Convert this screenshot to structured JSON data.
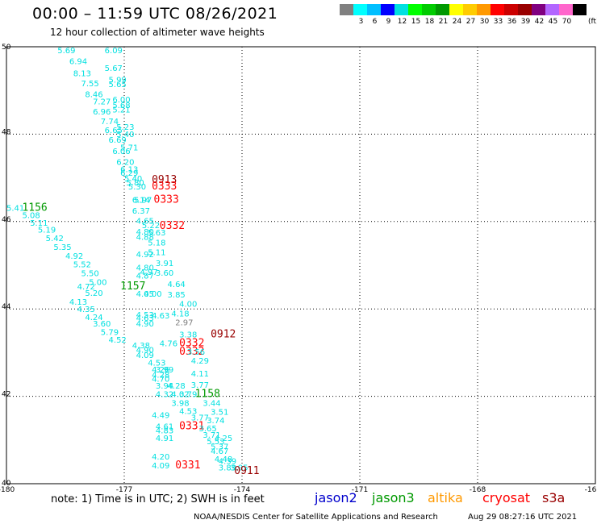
{
  "title": "00:00 – 11:59 UTC 08/26/2021",
  "subtitle": "12 hour collection of altimeter wave heights",
  "color_scale": {
    "unit": "(ft)",
    "colors": [
      "#808080",
      "#00ffff",
      "#00bfff",
      "#0000ff",
      "#00e0e0",
      "#00ff00",
      "#00cc00",
      "#009900",
      "#ffff00",
      "#ffcc00",
      "#ff9900",
      "#ff0000",
      "#cc0000",
      "#990000",
      "#800080",
      "#b266ff",
      "#ff66cc",
      "#000000"
    ],
    "labels": [
      "3",
      "6",
      "9",
      "12",
      "15",
      "18",
      "21",
      "24",
      "27",
      "30",
      "33",
      "36",
      "39",
      "42",
      "45",
      "70"
    ]
  },
  "map": {
    "lon_range": [
      -180,
      -165
    ],
    "lat_range": [
      40,
      50
    ],
    "lon_ticks": [
      {
        "value": -180,
        "label": "-180"
      },
      {
        "value": -177,
        "label": "-177"
      },
      {
        "value": -174,
        "label": "-174"
      },
      {
        "value": -171,
        "label": "-171"
      },
      {
        "value": -168,
        "label": "-168"
      },
      {
        "value": -165,
        "label": "-16"
      }
    ],
    "lat_ticks": [
      {
        "value": 50,
        "label": "50"
      },
      {
        "value": 48,
        "label": "48"
      },
      {
        "value": 46,
        "label": "46"
      },
      {
        "value": 44,
        "label": "44"
      },
      {
        "value": 42,
        "label": "42"
      },
      {
        "value": 40,
        "label": "40"
      }
    ],
    "grid": true
  },
  "chart_data": {
    "type": "scatter",
    "x_label": "",
    "y_label": "",
    "xlim": [
      -180,
      -165
    ],
    "ylim": [
      40,
      50
    ],
    "points": [
      {
        "lon": -178.7,
        "lat": 49.85,
        "label": "5.69",
        "color": "#00e0e0"
      },
      {
        "lon": -177.5,
        "lat": 49.85,
        "label": "6.09",
        "color": "#00e0e0"
      },
      {
        "lon": -178.4,
        "lat": 49.6,
        "label": "6.94",
        "color": "#00e0e0"
      },
      {
        "lon": -177.5,
        "lat": 49.45,
        "label": "5.67",
        "color": "#00e0e0"
      },
      {
        "lon": -178.3,
        "lat": 49.33,
        "label": "8.13",
        "color": "#00e0e0"
      },
      {
        "lon": -177.4,
        "lat": 49.18,
        "label": "5.99",
        "color": "#00e0e0"
      },
      {
        "lon": -178.1,
        "lat": 49.1,
        "label": "7.55",
        "color": "#00e0e0"
      },
      {
        "lon": -177.4,
        "lat": 49.08,
        "label": "5.65",
        "color": "#00e0e0"
      },
      {
        "lon": -178.0,
        "lat": 48.85,
        "label": "8.46",
        "color": "#00e0e0"
      },
      {
        "lon": -177.3,
        "lat": 48.73,
        "label": "6.00",
        "color": "#00e0e0"
      },
      {
        "lon": -177.8,
        "lat": 48.68,
        "label": "7.27",
        "color": "#00e0e0"
      },
      {
        "lon": -177.3,
        "lat": 48.6,
        "label": "5.68",
        "color": "#00e0e0"
      },
      {
        "lon": -177.3,
        "lat": 48.5,
        "label": "5.21",
        "color": "#00e0e0"
      },
      {
        "lon": -177.8,
        "lat": 48.45,
        "label": "6.96",
        "color": "#00e0e0"
      },
      {
        "lon": -177.6,
        "lat": 48.23,
        "label": "7.74",
        "color": "#00e0e0"
      },
      {
        "lon": -177.2,
        "lat": 48.1,
        "label": "5.23",
        "color": "#00e0e0"
      },
      {
        "lon": -177.5,
        "lat": 48.03,
        "label": "6.65",
        "color": "#00e0e0"
      },
      {
        "lon": -177.2,
        "lat": 47.93,
        "label": "5.40",
        "color": "#00e0e0"
      },
      {
        "lon": -177.4,
        "lat": 47.8,
        "label": "6.69",
        "color": "#00e0e0"
      },
      {
        "lon": -177.1,
        "lat": 47.63,
        "label": "5.71",
        "color": "#00e0e0"
      },
      {
        "lon": -177.3,
        "lat": 47.55,
        "label": "6.06",
        "color": "#00e0e0"
      },
      {
        "lon": -177.2,
        "lat": 47.3,
        "label": "6.20",
        "color": "#00e0e0"
      },
      {
        "lon": -177.1,
        "lat": 47.13,
        "label": "6.13",
        "color": "#00e0e0"
      },
      {
        "lon": -177.1,
        "lat": 47.05,
        "label": "6.29",
        "color": "#00e0e0"
      },
      {
        "lon": -177.0,
        "lat": 46.92,
        "label": "5.40",
        "color": "#00e0e0"
      },
      {
        "lon": -176.95,
        "lat": 46.83,
        "label": "5.80",
        "color": "#00e0e0"
      },
      {
        "lon": -176.9,
        "lat": 46.73,
        "label": "5.30",
        "color": "#00e0e0"
      },
      {
        "lon": -176.3,
        "lat": 46.88,
        "label": "0913",
        "color": "#990000"
      },
      {
        "lon": -176.3,
        "lat": 46.73,
        "label": "0333",
        "color": "#ff0000"
      },
      {
        "lon": -176.25,
        "lat": 46.43,
        "label": "0333",
        "color": "#ff0000"
      },
      {
        "lon": -176.8,
        "lat": 46.43,
        "label": "6.14",
        "color": "#00e0e0"
      },
      {
        "lon": -176.75,
        "lat": 46.43,
        "label": "5.97",
        "color": "#00e0e0"
      },
      {
        "lon": -176.8,
        "lat": 46.18,
        "label": "6.37",
        "color": "#00e0e0"
      },
      {
        "lon": -179.6,
        "lat": 46.25,
        "label": "1156",
        "color": "#009900"
      },
      {
        "lon": -180.0,
        "lat": 46.25,
        "label": "5.41",
        "color": "#00e0e0"
      },
      {
        "lon": -179.6,
        "lat": 46.08,
        "label": "5.08",
        "color": "#00e0e0"
      },
      {
        "lon": -179.4,
        "lat": 45.9,
        "label": "5.11",
        "color": "#00e0e0"
      },
      {
        "lon": -176.7,
        "lat": 45.95,
        "label": "4.65",
        "color": "#00e0e0"
      },
      {
        "lon": -176.55,
        "lat": 45.85,
        "label": "5.22",
        "color": "#00e0e0"
      },
      {
        "lon": -176.1,
        "lat": 45.83,
        "label": "0332",
        "color": "#ff0000"
      },
      {
        "lon": -179.2,
        "lat": 45.75,
        "label": "5.19",
        "color": "#00e0e0"
      },
      {
        "lon": -176.7,
        "lat": 45.7,
        "label": "4.80",
        "color": "#00e0e0"
      },
      {
        "lon": -176.4,
        "lat": 45.68,
        "label": "5.63",
        "color": "#00e0e0"
      },
      {
        "lon": -176.7,
        "lat": 45.58,
        "label": "4.88",
        "color": "#00e0e0"
      },
      {
        "lon": -179.0,
        "lat": 45.55,
        "label": "5.42",
        "color": "#00e0e0"
      },
      {
        "lon": -176.4,
        "lat": 45.45,
        "label": "5.18",
        "color": "#00e0e0"
      },
      {
        "lon": -178.8,
        "lat": 45.35,
        "label": "5.35",
        "color": "#00e0e0"
      },
      {
        "lon": -176.4,
        "lat": 45.23,
        "label": "5.11",
        "color": "#00e0e0"
      },
      {
        "lon": -176.7,
        "lat": 45.18,
        "label": "4.92",
        "color": "#00e0e0"
      },
      {
        "lon": -178.5,
        "lat": 45.15,
        "label": "4.92",
        "color": "#00e0e0"
      },
      {
        "lon": -178.3,
        "lat": 44.95,
        "label": "5.52",
        "color": "#00e0e0"
      },
      {
        "lon": -176.2,
        "lat": 44.98,
        "label": "3.91",
        "color": "#00e0e0"
      },
      {
        "lon": -176.7,
        "lat": 44.88,
        "label": "4.80",
        "color": "#00e0e0"
      },
      {
        "lon": -176.6,
        "lat": 44.78,
        "label": "4.97",
        "color": "#00e0e0"
      },
      {
        "lon": -176.2,
        "lat": 44.76,
        "label": "3.60",
        "color": "#00e0e0"
      },
      {
        "lon": -178.1,
        "lat": 44.75,
        "label": "5.50",
        "color": "#00e0e0"
      },
      {
        "lon": -176.7,
        "lat": 44.7,
        "label": "4.87",
        "color": "#00e0e0"
      },
      {
        "lon": -177.9,
        "lat": 44.55,
        "label": "5.00",
        "color": "#00e0e0"
      },
      {
        "lon": -175.9,
        "lat": 44.5,
        "label": "4.64",
        "color": "#00e0e0"
      },
      {
        "lon": -178.2,
        "lat": 44.45,
        "label": "4.72",
        "color": "#00e0e0"
      },
      {
        "lon": -177.1,
        "lat": 44.45,
        "label": "1157",
        "color": "#009900"
      },
      {
        "lon": -176.7,
        "lat": 44.28,
        "label": "4.05",
        "color": "#00e0e0"
      },
      {
        "lon": -176.5,
        "lat": 44.28,
        "label": "4.00",
        "color": "#00e0e0"
      },
      {
        "lon": -175.9,
        "lat": 44.26,
        "label": "3.85",
        "color": "#00e0e0"
      },
      {
        "lon": -178.0,
        "lat": 44.3,
        "label": "5.20",
        "color": "#00e0e0"
      },
      {
        "lon": -178.4,
        "lat": 44.1,
        "label": "4.13",
        "color": "#00e0e0"
      },
      {
        "lon": -175.6,
        "lat": 44.05,
        "label": "4.00",
        "color": "#00e0e0"
      },
      {
        "lon": -178.2,
        "lat": 43.93,
        "label": "4.35",
        "color": "#00e0e0"
      },
      {
        "lon": -175.8,
        "lat": 43.83,
        "label": "4.18",
        "color": "#00e0e0"
      },
      {
        "lon": -176.7,
        "lat": 43.8,
        "label": "4.53",
        "color": "#00e0e0"
      },
      {
        "lon": -176.3,
        "lat": 43.78,
        "label": "4.63",
        "color": "#00e0e0"
      },
      {
        "lon": -178.0,
        "lat": 43.75,
        "label": "4.24",
        "color": "#00e0e0"
      },
      {
        "lon": -176.7,
        "lat": 43.73,
        "label": "4.63",
        "color": "#00e0e0"
      },
      {
        "lon": -175.7,
        "lat": 43.63,
        "label": "2.97",
        "color": "#808080"
      },
      {
        "lon": -177.8,
        "lat": 43.6,
        "label": "3.60",
        "color": "#00e0e0"
      },
      {
        "lon": -176.7,
        "lat": 43.6,
        "label": "4.90",
        "color": "#00e0e0"
      },
      {
        "lon": -177.6,
        "lat": 43.4,
        "label": "5.79",
        "color": "#00e0e0"
      },
      {
        "lon": -175.6,
        "lat": 43.35,
        "label": "3.38",
        "color": "#00e0e0"
      },
      {
        "lon": -174.8,
        "lat": 43.35,
        "label": "0912",
        "color": "#990000"
      },
      {
        "lon": -177.4,
        "lat": 43.23,
        "label": "4.52",
        "color": "#00e0e0"
      },
      {
        "lon": -176.1,
        "lat": 43.15,
        "label": "4.76",
        "color": "#00e0e0"
      },
      {
        "lon": -175.6,
        "lat": 43.15,
        "label": "0332",
        "color": "#ff0000"
      },
      {
        "lon": -176.8,
        "lat": 43.1,
        "label": "4.38",
        "color": "#00e0e0"
      },
      {
        "lon": -176.7,
        "lat": 43.0,
        "label": "4.90",
        "color": "#00e0e0"
      },
      {
        "lon": -175.6,
        "lat": 42.95,
        "label": "0332",
        "color": "#ff0000"
      },
      {
        "lon": -175.4,
        "lat": 42.95,
        "label": "3.56",
        "color": "#00e0e0"
      },
      {
        "lon": -176.7,
        "lat": 42.88,
        "label": "4.09",
        "color": "#00e0e0"
      },
      {
        "lon": -175.3,
        "lat": 42.75,
        "label": "4.29",
        "color": "#00e0e0"
      },
      {
        "lon": -176.4,
        "lat": 42.7,
        "label": "4.53",
        "color": "#00e0e0"
      },
      {
        "lon": -176.3,
        "lat": 42.55,
        "label": "4.26",
        "color": "#00e0e0"
      },
      {
        "lon": -176.2,
        "lat": 42.55,
        "label": "3.99",
        "color": "#00e0e0"
      },
      {
        "lon": -175.3,
        "lat": 42.45,
        "label": "4.11",
        "color": "#00e0e0"
      },
      {
        "lon": -176.3,
        "lat": 42.43,
        "label": "4.28",
        "color": "#00e0e0"
      },
      {
        "lon": -176.3,
        "lat": 42.33,
        "label": "4.70",
        "color": "#00e0e0"
      },
      {
        "lon": -175.3,
        "lat": 42.2,
        "label": "3.77",
        "color": "#00e0e0"
      },
      {
        "lon": -176.2,
        "lat": 42.18,
        "label": "3.94",
        "color": "#00e0e0"
      },
      {
        "lon": -175.9,
        "lat": 42.18,
        "label": "4.28",
        "color": "#00e0e0"
      },
      {
        "lon": -176.2,
        "lat": 41.98,
        "label": "4.32",
        "color": "#00e0e0"
      },
      {
        "lon": -175.8,
        "lat": 41.98,
        "label": "4.02",
        "color": "#00e0e0"
      },
      {
        "lon": -175.6,
        "lat": 41.98,
        "label": "3.79",
        "color": "#00e0e0"
      },
      {
        "lon": -175.2,
        "lat": 41.98,
        "label": "1158",
        "color": "#009900"
      },
      {
        "lon": -175.8,
        "lat": 41.78,
        "label": "3.98",
        "color": "#00e0e0"
      },
      {
        "lon": -175.0,
        "lat": 41.78,
        "label": "3.44",
        "color": "#00e0e0"
      },
      {
        "lon": -175.6,
        "lat": 41.6,
        "label": "4.53",
        "color": "#00e0e0"
      },
      {
        "lon": -174.8,
        "lat": 41.58,
        "label": "3.51",
        "color": "#00e0e0"
      },
      {
        "lon": -176.3,
        "lat": 41.5,
        "label": "4.49",
        "color": "#00e0e0"
      },
      {
        "lon": -175.3,
        "lat": 41.45,
        "label": "3.77",
        "color": "#00e0e0"
      },
      {
        "lon": -174.9,
        "lat": 41.38,
        "label": "3.74",
        "color": "#00e0e0"
      },
      {
        "lon": -176.2,
        "lat": 41.25,
        "label": "4.61",
        "color": "#00e0e0"
      },
      {
        "lon": -175.6,
        "lat": 41.25,
        "label": "0331",
        "color": "#ff0000"
      },
      {
        "lon": -175.1,
        "lat": 41.2,
        "label": "3.65",
        "color": "#00e0e0"
      },
      {
        "lon": -176.2,
        "lat": 41.15,
        "label": "4.83",
        "color": "#00e0e0"
      },
      {
        "lon": -175.0,
        "lat": 41.05,
        "label": "3.71",
        "color": "#00e0e0"
      },
      {
        "lon": -174.7,
        "lat": 40.98,
        "label": "4.25",
        "color": "#00e0e0"
      },
      {
        "lon": -176.2,
        "lat": 40.98,
        "label": "4.91",
        "color": "#00e0e0"
      },
      {
        "lon": -174.9,
        "lat": 40.9,
        "label": "5.53",
        "color": "#00e0e0"
      },
      {
        "lon": -174.8,
        "lat": 40.78,
        "label": "5.37",
        "color": "#00e0e0"
      },
      {
        "lon": -174.8,
        "lat": 40.68,
        "label": "4.67",
        "color": "#00e0e0"
      },
      {
        "lon": -176.3,
        "lat": 40.55,
        "label": "4.20",
        "color": "#00e0e0"
      },
      {
        "lon": -174.7,
        "lat": 40.5,
        "label": "4.48",
        "color": "#00e0e0"
      },
      {
        "lon": -174.6,
        "lat": 40.45,
        "label": "4.39",
        "color": "#00e0e0"
      },
      {
        "lon": -176.3,
        "lat": 40.35,
        "label": "4.09",
        "color": "#00e0e0"
      },
      {
        "lon": -175.7,
        "lat": 40.35,
        "label": "0331",
        "color": "#ff0000"
      },
      {
        "lon": -174.6,
        "lat": 40.3,
        "label": "3.89",
        "color": "#00e0e0"
      },
      {
        "lon": -174.3,
        "lat": 40.3,
        "label": "3.95",
        "color": "#00e0e0"
      },
      {
        "lon": -174.2,
        "lat": 40.22,
        "label": "0911",
        "color": "#990000"
      }
    ]
  },
  "footer": {
    "note": "note: 1) Time is in UTC; 2) SWH is in feet",
    "legend": [
      {
        "name": "jason2",
        "color": "#0000cc"
      },
      {
        "name": "jason3",
        "color": "#009900"
      },
      {
        "name": "altika",
        "color": "#ff9900"
      },
      {
        "name": "cryosat",
        "color": "#ff0000"
      },
      {
        "name": "s3a",
        "color": "#990000"
      }
    ],
    "credit": "NOAA/NESDIS Center for Satellite Applications and Research",
    "timestamp": "Aug 29 08:27:16 UTC 2021"
  }
}
